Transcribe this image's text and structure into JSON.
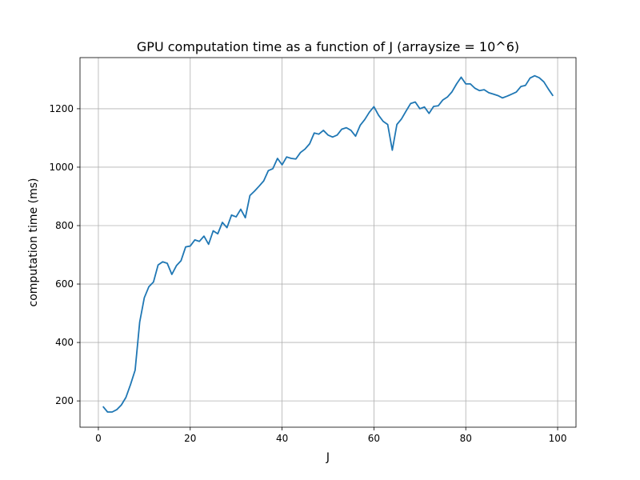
{
  "chart_data": {
    "type": "line",
    "title": "GPU computation time as a function of J (arraysize = 10^6)",
    "xlabel": "J",
    "ylabel": "computation time (ms)",
    "xlim": [
      -4,
      104
    ],
    "ylim": [
      110,
      1375
    ],
    "xticks": [
      0,
      20,
      40,
      60,
      80,
      100
    ],
    "yticks": [
      200,
      400,
      600,
      800,
      1000,
      1200
    ],
    "grid": true,
    "line_color": "#1f77b4",
    "series": [
      {
        "x": [
          1,
          2,
          3,
          4,
          5,
          6,
          7,
          8,
          9,
          10,
          11,
          12,
          13,
          14,
          15,
          16,
          17,
          18,
          19,
          20,
          21,
          22,
          23,
          24,
          25,
          26,
          27,
          28,
          29,
          30,
          31,
          32,
          33,
          34,
          35,
          36,
          37,
          38,
          39,
          40,
          41,
          42,
          43,
          44,
          45,
          46,
          47,
          48,
          49,
          50,
          51,
          52,
          53,
          54,
          55,
          56,
          57,
          58,
          59,
          60,
          61,
          62,
          63,
          64,
          65,
          66,
          67,
          68,
          69,
          70,
          71,
          72,
          73,
          74,
          75,
          76,
          77,
          78,
          79,
          80,
          81,
          82,
          83,
          84,
          85,
          86,
          87,
          88,
          89,
          90,
          91,
          92,
          93,
          94,
          95,
          96,
          97,
          98,
          99
        ],
        "y": [
          181,
          162,
          162,
          170,
          186,
          212,
          256,
          305,
          470,
          553,
          591,
          607,
          665,
          676,
          671,
          633,
          663,
          680,
          727,
          730,
          751,
          746,
          764,
          736,
          782,
          772,
          811,
          793,
          836,
          830,
          856,
          827,
          903,
          918,
          935,
          953,
          988,
          995,
          1030,
          1008,
          1035,
          1030,
          1028,
          1050,
          1062,
          1080,
          1117,
          1113,
          1126,
          1110,
          1103,
          1110,
          1130,
          1135,
          1126,
          1106,
          1143,
          1163,
          1188,
          1207,
          1178,
          1157,
          1146,
          1058,
          1146,
          1165,
          1192,
          1218,
          1223,
          1200,
          1206,
          1184,
          1208,
          1210,
          1230,
          1240,
          1258,
          1285,
          1308,
          1285,
          1285,
          1270,
          1262,
          1265,
          1255,
          1250,
          1245,
          1237,
          1243,
          1250,
          1257,
          1276,
          1280,
          1305,
          1313,
          1306,
          1292,
          1267,
          1244
        ]
      }
    ]
  }
}
